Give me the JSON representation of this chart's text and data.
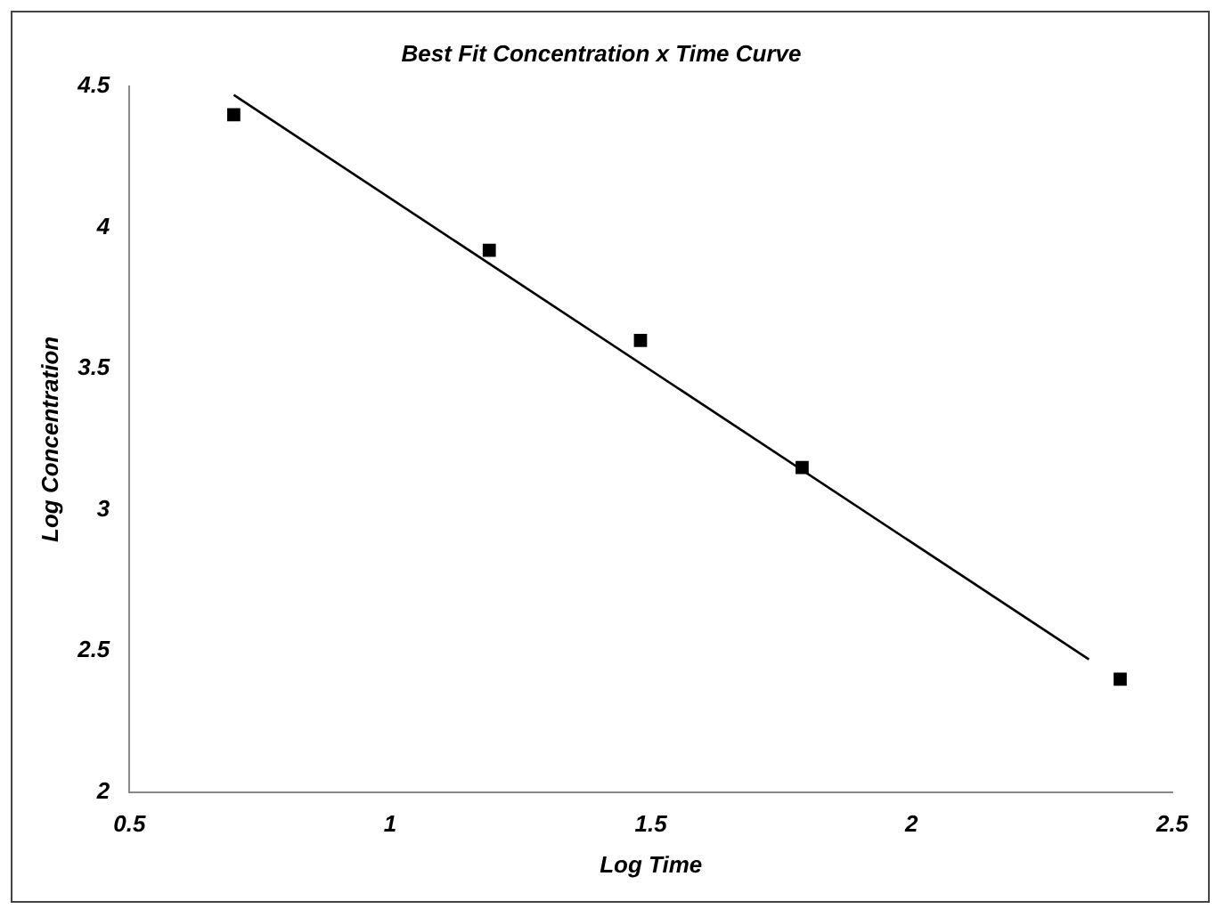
{
  "chart_data": {
    "type": "scatter",
    "title": "Best Fit Concentration x Time Curve",
    "xlabel": "Log Time",
    "ylabel": "Log Concentration",
    "xlim": [
      0.5,
      2.5
    ],
    "xticks": [
      0.5,
      1,
      1.5,
      2,
      2.5
    ],
    "ylim": [
      2,
      4.5
    ],
    "yticks": [
      2,
      2.5,
      3,
      3.5,
      4,
      4.5
    ],
    "grid": false,
    "legend": false,
    "marker": "square",
    "series": [
      {
        "color": "#000000",
        "x": [
          0.7,
          1.19,
          1.48,
          1.79,
          2.4
        ],
        "values": [
          4.4,
          3.92,
          3.6,
          3.15,
          2.4
        ]
      },
      {
        "type": "line",
        "marker": "none",
        "color": "#000000",
        "x": [
          0.7,
          2.34
        ],
        "values": [
          4.47,
          2.47
        ]
      }
    ]
  }
}
